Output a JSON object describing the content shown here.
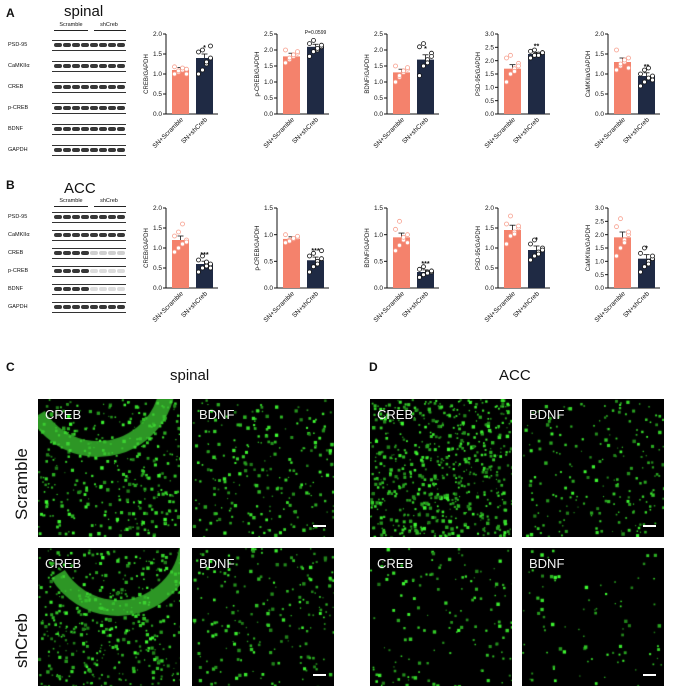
{
  "panels": {
    "A": {
      "letter": "A",
      "title": "spinal"
    },
    "B": {
      "letter": "B",
      "title": "ACC"
    },
    "C": {
      "letter": "C",
      "title": "spinal"
    },
    "D": {
      "letter": "D",
      "title": "ACC"
    }
  },
  "western": {
    "A": {
      "groups": [
        "Scramble",
        "shCreb"
      ],
      "proteins": [
        "PSD-95",
        "CaMKIIα",
        "CREB",
        "p-CREB",
        "BDNF",
        "GAPDH"
      ]
    },
    "B": {
      "groups": [
        "Scramble",
        "shCreb"
      ],
      "proteins": [
        "PSD-95",
        "CaMKIIα",
        "CREB",
        "p-CREB",
        "BDNF",
        "GAPDH"
      ]
    }
  },
  "colors": {
    "scramble": "#f4826c",
    "shcreb": "#1f2a44",
    "scramble_dot": "#f4826c",
    "shcreb_dot": "#1f2a44"
  },
  "chart_data": [
    {
      "panel": "A",
      "type": "bar",
      "ylabel": "CREB/GAPDH",
      "ylim": [
        0,
        2.0
      ],
      "yticks": [
        "0.0",
        "0.5",
        "1.0",
        "1.5",
        "2.0"
      ],
      "categories": [
        "SN+Scramble",
        "SN+shCreb"
      ],
      "values": [
        1.1,
        1.4
      ],
      "errors": [
        0.06,
        0.1
      ],
      "annotation": "*",
      "points": [
        [
          1.0,
          1.05,
          1.1,
          1.12,
          1.18,
          1.08,
          1.15,
          1.0
        ],
        [
          1.0,
          1.1,
          1.25,
          1.4,
          1.55,
          1.6,
          1.3,
          1.7
        ]
      ]
    },
    {
      "panel": "A",
      "type": "bar",
      "ylabel": "p-CREB/GAPDH",
      "ylim": [
        0,
        2.5
      ],
      "yticks": [
        "0.0",
        "0.5",
        "1.0",
        "1.5",
        "2.0",
        "2.5"
      ],
      "categories": [
        "SN+Scramble",
        "SN+shCreb"
      ],
      "values": [
        1.8,
        2.1
      ],
      "errors": [
        0.1,
        0.08
      ],
      "annotation": "P=0.0599",
      "points": [
        [
          1.6,
          1.7,
          1.8,
          1.9,
          2.0,
          1.75,
          1.85,
          1.95
        ],
        [
          1.8,
          1.95,
          2.0,
          2.1,
          2.2,
          2.3,
          2.05,
          2.15
        ]
      ]
    },
    {
      "panel": "A",
      "type": "bar",
      "ylabel": "BDNF/GAPDH",
      "ylim": [
        0,
        2.5
      ],
      "yticks": [
        "0.0",
        "0.5",
        "1.0",
        "1.5",
        "2.0",
        "2.5"
      ],
      "categories": [
        "SN+Scramble",
        "SN+shCreb"
      ],
      "values": [
        1.3,
        1.7
      ],
      "errors": [
        0.1,
        0.15
      ],
      "annotation": "*",
      "points": [
        [
          1.0,
          1.15,
          1.3,
          1.4,
          1.5,
          1.2,
          1.35,
          1.45
        ],
        [
          1.2,
          1.5,
          1.7,
          1.9,
          2.1,
          2.2,
          1.6,
          1.8
        ]
      ]
    },
    {
      "panel": "A",
      "type": "bar",
      "ylabel": "PSD-95/GAPDH",
      "ylim": [
        0,
        3.0
      ],
      "yticks": [
        "0.0",
        "0.5",
        "1.0",
        "1.5",
        "2.0",
        "2.5",
        "3.0"
      ],
      "categories": [
        "SN+Scramble",
        "SN+shCreb"
      ],
      "values": [
        1.7,
        2.25
      ],
      "errors": [
        0.15,
        0.06
      ],
      "annotation": "**",
      "points": [
        [
          1.2,
          1.5,
          1.7,
          1.9,
          2.1,
          2.2,
          1.6,
          1.8
        ],
        [
          2.1,
          2.2,
          2.25,
          2.3,
          2.35,
          2.4,
          2.2,
          2.3
        ]
      ]
    },
    {
      "panel": "A",
      "type": "bar",
      "ylabel": "CaMKIIα/GAPDH",
      "ylim": [
        0,
        2.0
      ],
      "yticks": [
        "0.0",
        "0.5",
        "1.0",
        "1.5",
        "2.0"
      ],
      "categories": [
        "SN+Scramble",
        "SN+shCreb"
      ],
      "values": [
        1.3,
        0.95
      ],
      "errors": [
        0.1,
        0.08
      ],
      "annotation": "**",
      "points": [
        [
          1.1,
          1.2,
          1.3,
          1.4,
          1.6,
          1.25,
          1.35,
          1.15
        ],
        [
          0.7,
          0.8,
          0.9,
          0.95,
          1.0,
          1.1,
          1.15,
          0.85
        ]
      ]
    },
    {
      "panel": "B",
      "type": "bar",
      "ylabel": "CREB/GAPDH",
      "ylim": [
        0,
        2.0
      ],
      "yticks": [
        "0.0",
        "0.5",
        "1.0",
        "1.5",
        "2.0"
      ],
      "categories": [
        "SN+Scramble",
        "SN+shCreb"
      ],
      "values": [
        1.2,
        0.6
      ],
      "errors": [
        0.1,
        0.07
      ],
      "annotation": "***",
      "points": [
        [
          0.9,
          1.0,
          1.1,
          1.2,
          1.3,
          1.4,
          1.6,
          1.15
        ],
        [
          0.4,
          0.5,
          0.55,
          0.6,
          0.7,
          0.8,
          0.65,
          0.5
        ]
      ]
    },
    {
      "panel": "B",
      "type": "bar",
      "ylabel": "p-CREB/GAPDH",
      "ylim": [
        0,
        1.5
      ],
      "yticks": [
        "0.0",
        "0.5",
        "1.0",
        "1.5"
      ],
      "categories": [
        "SN+Scramble",
        "SN+shCreb"
      ],
      "values": [
        0.92,
        0.52
      ],
      "errors": [
        0.04,
        0.06
      ],
      "annotation": "***",
      "points": [
        [
          0.85,
          0.9,
          0.92,
          0.95,
          1.0,
          0.88,
          0.93,
          0.97
        ],
        [
          0.3,
          0.4,
          0.5,
          0.55,
          0.6,
          0.65,
          0.45,
          0.7
        ]
      ]
    },
    {
      "panel": "B",
      "type": "bar",
      "ylabel": "BDNF/GAPDH",
      "ylim": [
        0,
        1.5
      ],
      "yticks": [
        "0.0",
        "0.5",
        "1.0",
        "1.5"
      ],
      "categories": [
        "SN+Scramble",
        "SN+shCreb"
      ],
      "values": [
        0.95,
        0.3
      ],
      "errors": [
        0.08,
        0.04
      ],
      "annotation": "***",
      "points": [
        [
          0.7,
          0.8,
          0.9,
          1.0,
          1.1,
          1.25,
          0.95,
          0.85
        ],
        [
          0.2,
          0.25,
          0.3,
          0.3,
          0.35,
          0.4,
          0.28,
          0.32
        ]
      ]
    },
    {
      "panel": "B",
      "type": "bar",
      "ylabel": "PSD-95/GAPDH",
      "ylim": [
        0,
        2.0
      ],
      "yticks": [
        "0.0",
        "0.5",
        "1.0",
        "1.5",
        "2.0"
      ],
      "categories": [
        "SN+Scramble",
        "SN+shCreb"
      ],
      "values": [
        1.45,
        0.95
      ],
      "errors": [
        0.12,
        0.1
      ],
      "annotation": "*",
      "points": [
        [
          1.1,
          1.3,
          1.4,
          1.5,
          1.6,
          1.8,
          1.35,
          1.55
        ],
        [
          0.7,
          0.8,
          0.9,
          1.0,
          1.1,
          1.2,
          0.85,
          0.95
        ]
      ]
    },
    {
      "panel": "B",
      "type": "bar",
      "ylabel": "CaMKIIα/GAPDH",
      "ylim": [
        0,
        3.0
      ],
      "yticks": [
        "0.0",
        "0.5",
        "1.0",
        "1.5",
        "2.0",
        "2.5",
        "3.0"
      ],
      "categories": [
        "SN+Scramble",
        "SN+shCreb"
      ],
      "values": [
        1.9,
        1.1
      ],
      "errors": [
        0.2,
        0.15
      ],
      "annotation": "*",
      "points": [
        [
          1.2,
          1.5,
          1.8,
          2.0,
          2.3,
          2.6,
          1.7,
          2.1
        ],
        [
          0.6,
          0.8,
          1.0,
          1.1,
          1.3,
          1.5,
          0.9,
          1.2
        ]
      ]
    }
  ],
  "micrographs": {
    "row_labels": [
      "Scramble",
      "shCreb"
    ],
    "tiles": [
      {
        "label": "CREB"
      },
      {
        "label": "BDNF"
      },
      {
        "label": "CREB"
      },
      {
        "label": "BDNF"
      },
      {
        "label": "CREB"
      },
      {
        "label": "BDNF"
      },
      {
        "label": "CREB"
      },
      {
        "label": "BDNF"
      }
    ]
  }
}
